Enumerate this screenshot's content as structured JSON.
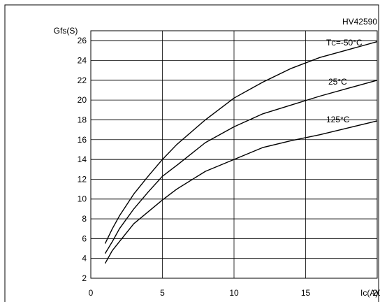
{
  "chart_data": {
    "type": "line",
    "figure_id": "HV42590",
    "xlabel": "Ic(A)",
    "ylabel": "Gfs(S)",
    "xlim": [
      0,
      20
    ],
    "ylim": [
      2,
      27
    ],
    "x_ticks": [
      0,
      5,
      10,
      15,
      20
    ],
    "y_ticks": [
      2,
      4,
      6,
      8,
      10,
      12,
      14,
      16,
      18,
      20,
      22,
      24,
      26
    ],
    "grid": true,
    "series": [
      {
        "name": "Tc=-50°C",
        "label_main": "T",
        "label_sub": "C",
        "label_rest": "=-50°C",
        "x": [
          1,
          1.5,
          2,
          3,
          4,
          5,
          6,
          8,
          10,
          12,
          14,
          16,
          18,
          20
        ],
        "y": [
          5.5,
          7.0,
          8.3,
          10.5,
          12.3,
          14.0,
          15.5,
          18.0,
          20.2,
          21.8,
          23.2,
          24.3,
          25.1,
          25.9
        ]
      },
      {
        "name": "25°C",
        "x": [
          1,
          1.5,
          2,
          3,
          4,
          5,
          6,
          8,
          10,
          12,
          14,
          16,
          18,
          20
        ],
        "y": [
          4.5,
          5.7,
          7.0,
          9.0,
          10.7,
          12.3,
          13.4,
          15.7,
          17.3,
          18.6,
          19.5,
          20.4,
          21.2,
          22.0
        ]
      },
      {
        "name": "125°C",
        "x": [
          1,
          1.5,
          2,
          3,
          4,
          5,
          6,
          8,
          10,
          12,
          14,
          16,
          18,
          20
        ],
        "y": [
          3.5,
          4.8,
          5.7,
          7.5,
          8.7,
          9.9,
          11.0,
          12.8,
          14.0,
          15.2,
          15.9,
          16.5,
          17.2,
          17.9
        ]
      }
    ]
  }
}
